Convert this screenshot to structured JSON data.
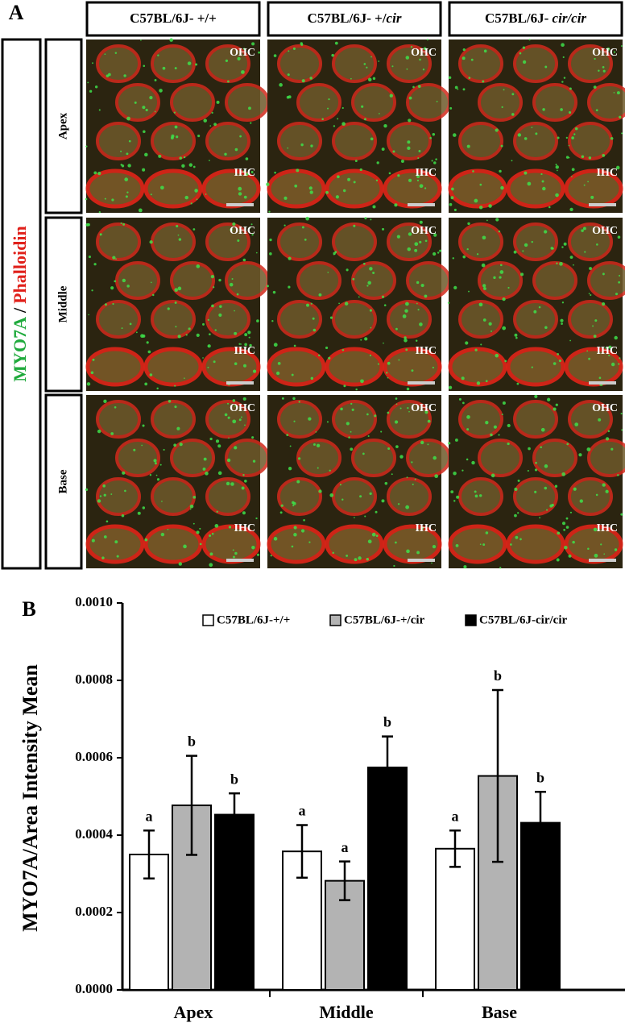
{
  "panel_a": {
    "label": "A",
    "column_headers": [
      [
        "C57BL/6J- +/+"
      ],
      [
        "C57BL/6J- +/",
        "cir"
      ],
      [
        "C57BL/6J- ",
        "cir/cir"
      ]
    ],
    "stain_label": [
      "MYO7A",
      "/",
      "Phalloidin"
    ],
    "row_labels": [
      "Apex",
      "Middle",
      "Base"
    ],
    "cell_labels": {
      "outer": "OHC",
      "inner": "IHC"
    }
  },
  "chart_data": {
    "type": "bar",
    "panel_label": "B",
    "y_label": "MYO7A/Area Intensity Mean",
    "categories": [
      "Apex",
      "Middle",
      "Base"
    ],
    "ylim": [
      0,
      0.001
    ],
    "yticks": [
      {
        "value": 0,
        "label": "0.0000"
      },
      {
        "value": 0.0002,
        "label": "0.0002"
      },
      {
        "value": 0.0004,
        "label": "0.0004"
      },
      {
        "value": 0.0006,
        "label": "0.0006"
      },
      {
        "value": 0.0008,
        "label": "0.0008"
      },
      {
        "value": 0.001,
        "label": "0.0010"
      }
    ],
    "series": [
      {
        "name": "C57BL/6J-+/+",
        "color": "#ffffff",
        "values": [
          0.00035,
          0.000358,
          0.000365
        ],
        "errors": [
          6.2e-05,
          6.8e-05,
          4.7e-05
        ],
        "letters": [
          "a",
          "a",
          "a"
        ]
      },
      {
        "name": "C57BL/6J-+/cir",
        "color": "#b3b3b3",
        "values": [
          0.000477,
          0.000282,
          0.000553
        ],
        "errors": [
          0.000128,
          5e-05,
          0.000222
        ],
        "letters": [
          "b",
          "a",
          "b"
        ]
      },
      {
        "name": "C57BL/6J-cir/cir",
        "color": "#000000",
        "values": [
          0.000453,
          0.000575,
          0.000432
        ],
        "errors": [
          5.5e-05,
          8e-05,
          8e-05
        ],
        "letters": [
          "b",
          "b",
          "b"
        ]
      }
    ]
  }
}
